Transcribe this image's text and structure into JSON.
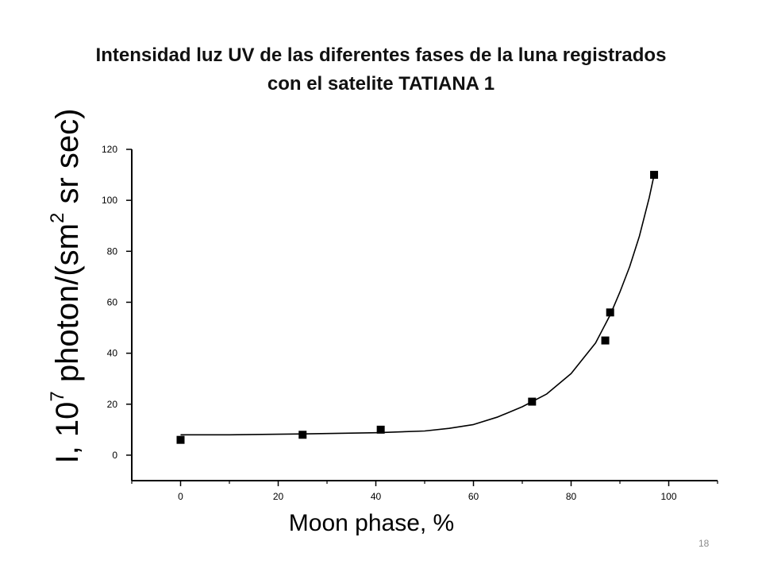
{
  "slide": {
    "title_line1": "Intensidad  luz UV de las diferentes fases de la luna registrados",
    "title_line2": "con el satelite TATIANA 1",
    "slide_number": "18"
  },
  "chart_data": {
    "type": "scatter",
    "title": "",
    "xlabel": "Moon phase, %",
    "ylabel_main": "I, 10",
    "ylabel_exp": "7",
    "ylabel_unit": " photon/(sm",
    "ylabel_unit_exp": "2",
    "ylabel_tail": " sr sec)",
    "xlim": [
      -10,
      110
    ],
    "ylim": [
      -10,
      120
    ],
    "x_ticks": [
      0,
      20,
      40,
      60,
      80,
      100
    ],
    "y_ticks": [
      0,
      20,
      40,
      60,
      80,
      100,
      120
    ],
    "grid": false,
    "colors": {
      "axis": "#000000",
      "marker": "#000000",
      "fit_line": "#000000"
    },
    "series": [
      {
        "marker": "square",
        "x": [
          0,
          25,
          41,
          72,
          87,
          88,
          97
        ],
        "y": [
          6,
          8,
          10,
          21,
          45,
          56,
          110
        ]
      }
    ],
    "fit_curve": {
      "x": [
        0,
        10,
        20,
        30,
        40,
        50,
        55,
        60,
        65,
        70,
        75,
        80,
        85,
        88,
        90,
        92,
        94,
        96,
        97
      ],
      "y": [
        8,
        8,
        8.2,
        8.5,
        8.8,
        9.5,
        10.5,
        12,
        15,
        19,
        24,
        32,
        44,
        55,
        64,
        74,
        86,
        101,
        110
      ]
    }
  }
}
